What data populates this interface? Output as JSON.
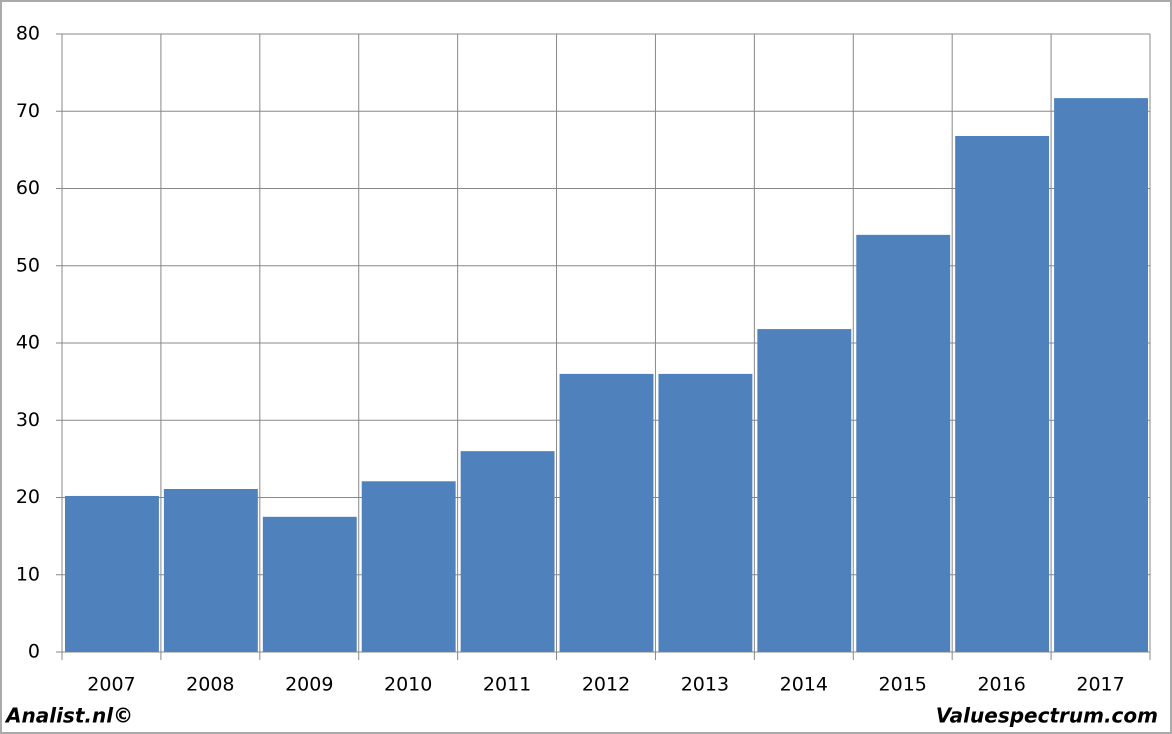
{
  "chart_data": {
    "type": "bar",
    "categories": [
      "2007",
      "2008",
      "2009",
      "2010",
      "2011",
      "2012",
      "2013",
      "2014",
      "2015",
      "2016",
      "2017"
    ],
    "values": [
      20.2,
      21.1,
      17.5,
      22.1,
      26.0,
      36.0,
      36.0,
      41.8,
      54.0,
      66.8,
      71.7
    ],
    "color": "#4f81bd",
    "ylim": [
      0,
      80
    ],
    "yticks": [
      0,
      10,
      20,
      30,
      40,
      50,
      60,
      70,
      80
    ],
    "grid": true,
    "annotations": [
      "Analist.nl©",
      "Valuespectrum.com"
    ]
  }
}
